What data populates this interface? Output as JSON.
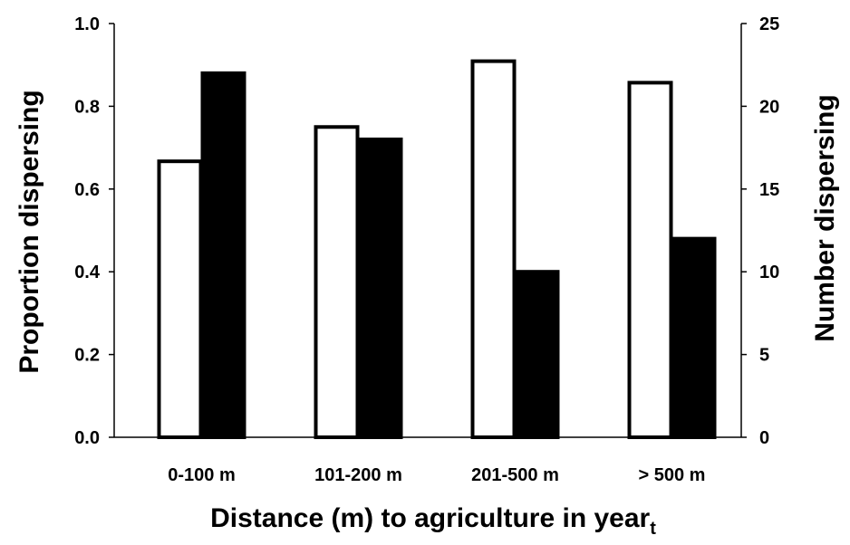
{
  "chart_data": {
    "type": "bar",
    "categories": [
      "0-100 m",
      "101-200 m",
      "201-500 m",
      "> 500 m"
    ],
    "series": [
      {
        "axis": "left",
        "fill": "#ffffff",
        "stroke": "#000000",
        "values": [
          0.667,
          0.75,
          0.909,
          0.857
        ]
      },
      {
        "axis": "right",
        "fill": "#000000",
        "stroke": "#000000",
        "values": [
          22,
          18,
          10,
          12
        ]
      }
    ],
    "xlabel": "Distance (m) to agriculture in year",
    "xlabel_subscript": "t",
    "ylabel": "Proportion dispersing",
    "y2label": "Number dispersing",
    "ylim": [
      0,
      1.0
    ],
    "y2lim": [
      0,
      25
    ],
    "yticks": [
      "0.0",
      "0.2",
      "0.4",
      "0.6",
      "0.8",
      "1.0"
    ],
    "y2ticks": [
      "0",
      "5",
      "10",
      "15",
      "20",
      "25"
    ],
    "grid": false,
    "legend": "none"
  }
}
